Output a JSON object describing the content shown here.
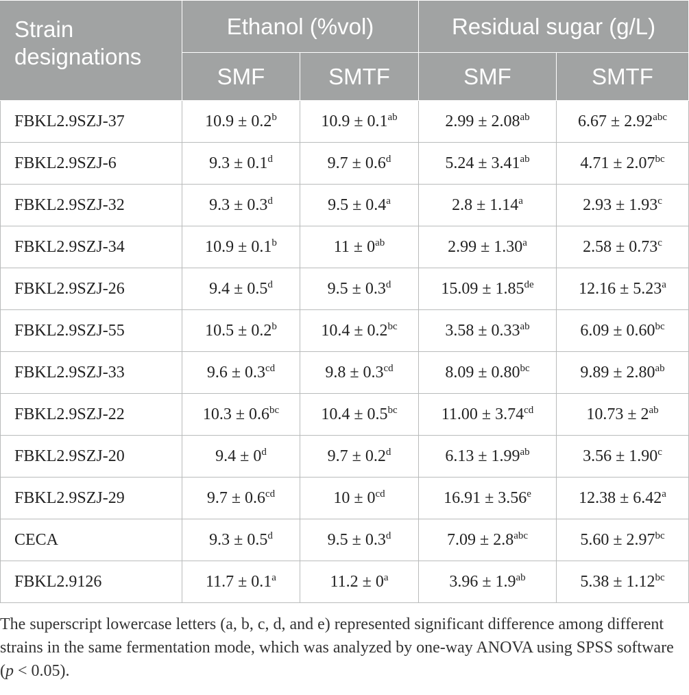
{
  "header": {
    "strain_line1": "Strain",
    "strain_line2": "designations",
    "ethanol": "Ethanol (%vol)",
    "sugar": "Residual sugar (g/L)",
    "sub": [
      "SMF",
      "SMTF",
      "SMF",
      "SMTF"
    ]
  },
  "rows": [
    {
      "name": "FBKL2.9SZJ-37",
      "cells": [
        {
          "v": "10.9 ± 0.2",
          "s": "b"
        },
        {
          "v": "10.9 ± 0.1",
          "s": "ab"
        },
        {
          "v": "2.99 ± 2.08",
          "s": "ab"
        },
        {
          "v": "6.67 ± 2.92",
          "s": "abc"
        }
      ]
    },
    {
      "name": "FBKL2.9SZJ-6",
      "cells": [
        {
          "v": "9.3 ± 0.1",
          "s": "d"
        },
        {
          "v": "9.7 ± 0.6",
          "s": "d"
        },
        {
          "v": "5.24 ± 3.41",
          "s": "ab"
        },
        {
          "v": "4.71 ± 2.07",
          "s": "bc"
        }
      ]
    },
    {
      "name": "FBKL2.9SZJ-32",
      "cells": [
        {
          "v": "9.3 ± 0.3",
          "s": "d"
        },
        {
          "v": "9.5 ± 0.4",
          "s": "a"
        },
        {
          "v": "2.8 ± 1.14",
          "s": "a"
        },
        {
          "v": "2.93 ± 1.93",
          "s": "c"
        }
      ]
    },
    {
      "name": "FBKL2.9SZJ-34",
      "cells": [
        {
          "v": "10.9 ± 0.1",
          "s": "b"
        },
        {
          "v": "11 ± 0",
          "s": "ab"
        },
        {
          "v": "2.99 ± 1.30",
          "s": "a"
        },
        {
          "v": "2.58 ± 0.73",
          "s": "c"
        }
      ]
    },
    {
      "name": "FBKL2.9SZJ-26",
      "cells": [
        {
          "v": "9.4 ± 0.5",
          "s": "d"
        },
        {
          "v": "9.5 ± 0.3",
          "s": "d"
        },
        {
          "v": "15.09 ± 1.85",
          "s": "de"
        },
        {
          "v": "12.16 ± 5.23",
          "s": "a"
        }
      ]
    },
    {
      "name": "FBKL2.9SZJ-55",
      "cells": [
        {
          "v": "10.5 ± 0.2",
          "s": "b"
        },
        {
          "v": "10.4 ± 0.2",
          "s": "bc"
        },
        {
          "v": "3.58 ± 0.33",
          "s": "ab"
        },
        {
          "v": "6.09 ± 0.60",
          "s": "bc"
        }
      ]
    },
    {
      "name": "FBKL2.9SZJ-33",
      "cells": [
        {
          "v": "9.6 ± 0.3",
          "s": "cd"
        },
        {
          "v": "9.8 ± 0.3",
          "s": "cd"
        },
        {
          "v": "8.09 ± 0.80",
          "s": "bc"
        },
        {
          "v": "9.89 ± 2.80",
          "s": "ab"
        }
      ]
    },
    {
      "name": "FBKL2.9SZJ-22",
      "cells": [
        {
          "v": "10.3 ± 0.6",
          "s": "bc"
        },
        {
          "v": "10.4 ± 0.5",
          "s": "bc"
        },
        {
          "v": "11.00 ± 3.74",
          "s": "cd"
        },
        {
          "v": "10.73 ± 2",
          "s": "ab"
        }
      ]
    },
    {
      "name": "FBKL2.9SZJ-20",
      "cells": [
        {
          "v": "9.4 ± 0",
          "s": "d"
        },
        {
          "v": "9.7 ± 0.2",
          "s": "d"
        },
        {
          "v": "6.13 ± 1.99",
          "s": "ab"
        },
        {
          "v": "3.56 ± 1.90",
          "s": "c"
        }
      ]
    },
    {
      "name": "FBKL2.9SZJ-29",
      "cells": [
        {
          "v": "9.7 ± 0.6",
          "s": "cd"
        },
        {
          "v": "10 ± 0",
          "s": "cd"
        },
        {
          "v": "16.91 ± 3.56",
          "s": "e"
        },
        {
          "v": "12.38 ± 6.42",
          "s": "a"
        }
      ]
    },
    {
      "name": "CECA",
      "cells": [
        {
          "v": "9.3 ± 0.5",
          "s": "d"
        },
        {
          "v": "9.5 ± 0.3",
          "s": "d"
        },
        {
          "v": "7.09 ± 2.8",
          "s": "abc"
        },
        {
          "v": "5.60 ± 2.97",
          "s": "bc"
        }
      ]
    },
    {
      "name": "FBKL2.9126",
      "cells": [
        {
          "v": "11.7 ± 0.1",
          "s": "a"
        },
        {
          "v": "11.2 ± 0",
          "s": "a"
        },
        {
          "v": "3.96 ± 1.9",
          "s": "ab"
        },
        {
          "v": "5.38 ± 1.12",
          "s": "bc"
        }
      ]
    }
  ],
  "footnote": {
    "before": "The superscript lowercase letters (a, b, c, d, and e) represented significant difference among different strains in the same fermentation mode, which was analyzed by one-way ANOVA using SPSS software (",
    "p": "p",
    "after": " < 0.05)."
  },
  "colors": {
    "header_bg": "#a1a3a3",
    "header_text": "#ffffff",
    "grid_line": "#b9bbbb"
  }
}
